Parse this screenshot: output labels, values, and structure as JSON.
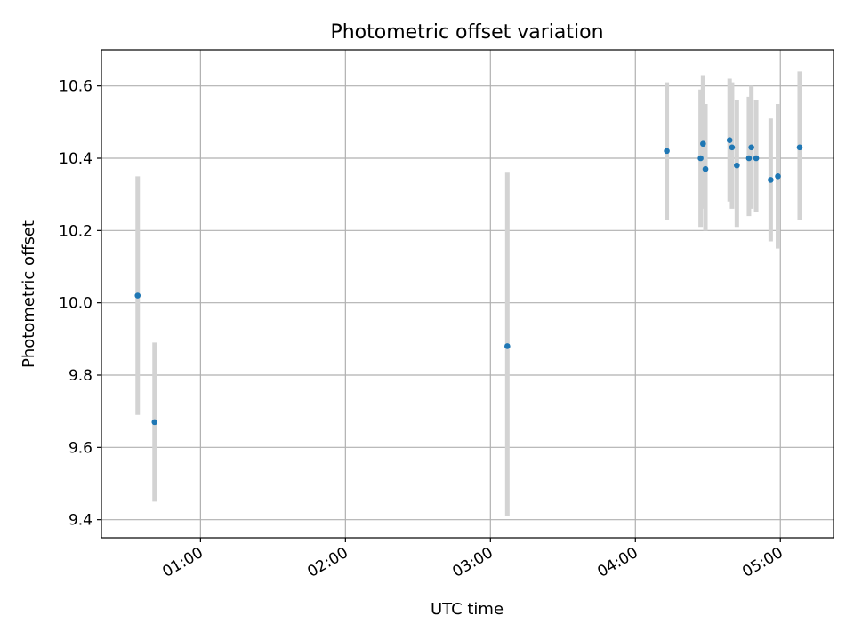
{
  "chart_data": {
    "type": "scatter",
    "title": "Photometric offset variation",
    "xlabel": "UTC time",
    "ylabel": "Photometric offset",
    "x_ticks": [
      "01:00",
      "02:00",
      "03:00",
      "04:00",
      "05:00"
    ],
    "y_ticks": [
      "9.4",
      "9.6",
      "9.8",
      "10.0",
      "10.2",
      "10.4",
      "10.6"
    ],
    "xlim": [
      "00:19",
      "05:22"
    ],
    "ylim": [
      9.35,
      10.7
    ],
    "grid": true,
    "colors": {
      "point": "#1f77b4",
      "errorbar": "#d3d3d3",
      "grid": "#b0b0b0"
    },
    "series": [
      {
        "points": [
          {
            "x": "00:34",
            "y": 10.02,
            "ylo": 9.69,
            "yhi": 10.35
          },
          {
            "x": "00:41",
            "y": 9.67,
            "ylo": 9.45,
            "yhi": 9.89
          },
          {
            "x": "03:07",
            "y": 9.88,
            "ylo": 9.41,
            "yhi": 10.36
          },
          {
            "x": "04:13",
            "y": 10.42,
            "ylo": 10.23,
            "yhi": 10.61
          },
          {
            "x": "04:27",
            "y": 10.4,
            "ylo": 10.21,
            "yhi": 10.59
          },
          {
            "x": "04:28",
            "y": 10.44,
            "ylo": 10.26,
            "yhi": 10.63
          },
          {
            "x": "04:29",
            "y": 10.37,
            "ylo": 10.2,
            "yhi": 10.55
          },
          {
            "x": "04:39",
            "y": 10.45,
            "ylo": 10.28,
            "yhi": 10.62
          },
          {
            "x": "04:40",
            "y": 10.43,
            "ylo": 10.26,
            "yhi": 10.61
          },
          {
            "x": "04:42",
            "y": 10.38,
            "ylo": 10.21,
            "yhi": 10.56
          },
          {
            "x": "04:47",
            "y": 10.4,
            "ylo": 10.24,
            "yhi": 10.57
          },
          {
            "x": "04:48",
            "y": 10.43,
            "ylo": 10.26,
            "yhi": 10.6
          },
          {
            "x": "04:50",
            "y": 10.4,
            "ylo": 10.25,
            "yhi": 10.56
          },
          {
            "x": "04:56",
            "y": 10.34,
            "ylo": 10.17,
            "yhi": 10.51
          },
          {
            "x": "04:59",
            "y": 10.35,
            "ylo": 10.15,
            "yhi": 10.55
          },
          {
            "x": "05:08",
            "y": 10.43,
            "ylo": 10.23,
            "yhi": 10.64
          }
        ]
      }
    ]
  }
}
